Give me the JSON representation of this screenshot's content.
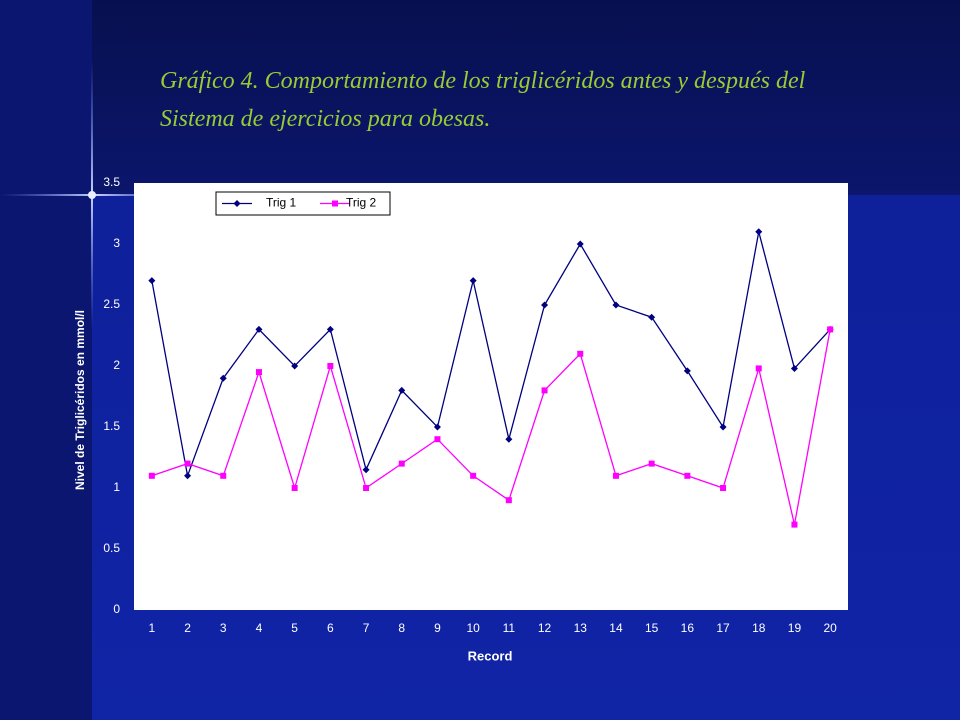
{
  "chart_data": {
    "type": "line",
    "title_lines": [
      "Gráfico 4. Comportamiento de los triglicéridos antes y después del",
      "Sistema de ejercicios para obesas."
    ],
    "x_label": "Record",
    "y_label": "Nivel de Triglicéridos en mmol/l",
    "categories": [
      "1",
      "2",
      "3",
      "4",
      "5",
      "6",
      "7",
      "8",
      "9",
      "10",
      "11",
      "12",
      "13",
      "14",
      "15",
      "16",
      "17",
      "18",
      "19",
      "20"
    ],
    "series": [
      {
        "name": "Trig 1",
        "color": "#000080",
        "marker": "diamond",
        "values": [
          2.7,
          1.1,
          1.9,
          2.3,
          2.0,
          2.3,
          1.15,
          1.8,
          1.5,
          2.7,
          1.4,
          2.5,
          3.0,
          2.5,
          2.4,
          1.96,
          1.5,
          3.1,
          1.98,
          2.3
        ]
      },
      {
        "name": "Trig 2",
        "color": "#ff00ff",
        "marker": "square",
        "values": [
          1.1,
          1.2,
          1.1,
          1.95,
          1.0,
          2.0,
          1.0,
          1.2,
          1.4,
          1.1,
          0.9,
          1.8,
          2.1,
          1.1,
          1.2,
          1.1,
          1.0,
          1.98,
          0.7,
          2.3
        ]
      }
    ],
    "ylim": [
      0,
      3.5
    ],
    "yticks": [
      0,
      0.5,
      1,
      1.5,
      2,
      2.5,
      3,
      3.5
    ],
    "grid": false,
    "legend": "top-left"
  }
}
